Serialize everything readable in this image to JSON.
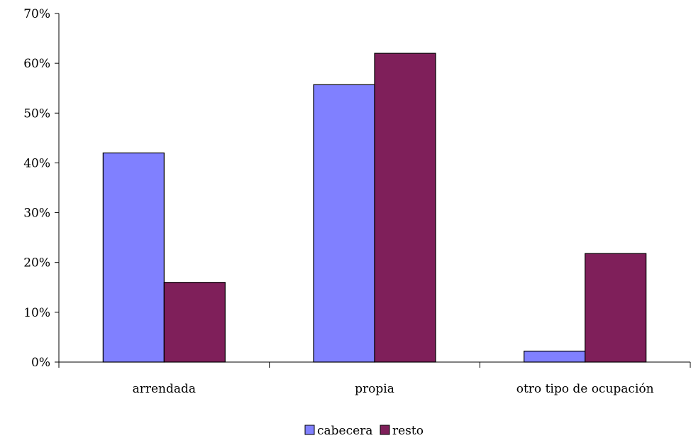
{
  "chart_data": {
    "type": "bar",
    "title": "",
    "xlabel": "",
    "ylabel": "",
    "categories": [
      "arrendada",
      "propia",
      "otro tipo de ocupación"
    ],
    "series": [
      {
        "name": "cabecera",
        "color": "#8080ff",
        "values": [
          42,
          55.7,
          2.2
        ]
      },
      {
        "name": "resto",
        "color": "#7f1f5a",
        "values": [
          16,
          62,
          21.8
        ]
      }
    ],
    "ylim": [
      0,
      70
    ],
    "yticks": [
      0,
      10,
      20,
      30,
      40,
      50,
      60,
      70
    ],
    "ytick_labels": [
      "0%",
      "10%",
      "20%",
      "30%",
      "40%",
      "50%",
      "60%",
      "70%"
    ],
    "grid": false,
    "legend_position": "bottom"
  }
}
